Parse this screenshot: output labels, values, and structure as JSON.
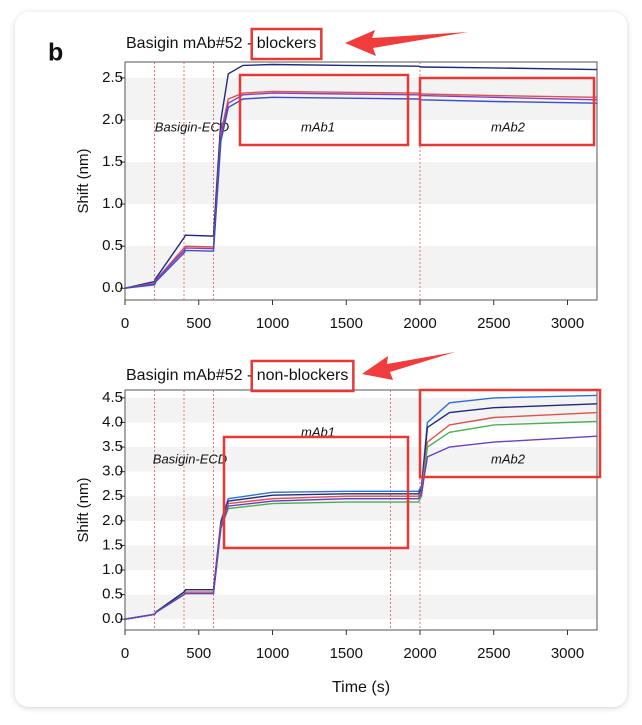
{
  "panel_label": "b",
  "chart_data": [
    {
      "type": "line",
      "title": "Basigin mAb#52 - blockers",
      "y_label": "Shift (nm)",
      "annotations": [
        "Basigin-ECD",
        "mAb1",
        "mAb2"
      ],
      "x": [
        0,
        200,
        210,
        400,
        410,
        600,
        650,
        700,
        800,
        1000,
        1500,
        1990,
        2010,
        2500,
        3200
      ],
      "series": [
        {
          "color": "#1f2a7a",
          "values": [
            0,
            0.08,
            0.12,
            0.6,
            0.63,
            0.62,
            2.0,
            2.55,
            2.65,
            2.66,
            2.65,
            2.64,
            2.63,
            2.62,
            2.6
          ]
        },
        {
          "color": "#d9534f",
          "values": [
            0,
            0.06,
            0.1,
            0.48,
            0.5,
            0.49,
            1.85,
            2.25,
            2.32,
            2.34,
            2.33,
            2.32,
            2.31,
            2.29,
            2.27
          ]
        },
        {
          "color": "#8a3fbf",
          "values": [
            0,
            0.05,
            0.1,
            0.45,
            0.48,
            0.47,
            1.8,
            2.2,
            2.3,
            2.32,
            2.31,
            2.3,
            2.29,
            2.27,
            2.24
          ]
        },
        {
          "color": "#3a4fc4",
          "values": [
            0,
            0.04,
            0.08,
            0.42,
            0.45,
            0.44,
            1.75,
            2.15,
            2.25,
            2.27,
            2.26,
            2.25,
            2.24,
            2.22,
            2.2
          ]
        }
      ],
      "vlines": [
        200,
        400,
        600,
        2000
      ],
      "xlim": [
        0,
        3200
      ],
      "xticks": [
        0,
        500,
        1000,
        1500,
        2000,
        2500,
        3000
      ],
      "ylim": [
        -0.14,
        2.69
      ],
      "yticks": [
        {
          "value": 0,
          "label": "0.0"
        },
        {
          "value": 0.5,
          "label": "0.5"
        },
        {
          "value": 1,
          "label": "1.0"
        },
        {
          "value": 1.5,
          "label": "1.5"
        },
        {
          "value": 2,
          "label": "2.0"
        },
        {
          "value": 2.5,
          "label": "2.5"
        }
      ]
    },
    {
      "type": "line",
      "title": "Basigin mAb#52 - non-blockers",
      "y_label": "Shift (nm)",
      "x_label": "Time (s)",
      "annotations": [
        "Basigin-ECD",
        "mAb1",
        "mAb2"
      ],
      "x": [
        0,
        200,
        210,
        400,
        410,
        600,
        650,
        700,
        1000,
        1500,
        1990,
        2010,
        2050,
        2200,
        2500,
        3200
      ],
      "series": [
        {
          "color": "#2c6fd6",
          "values": [
            0,
            0.1,
            0.15,
            0.55,
            0.6,
            0.6,
            2.0,
            2.45,
            2.58,
            2.6,
            2.6,
            2.7,
            4.0,
            4.4,
            4.5,
            4.55
          ]
        },
        {
          "color": "#1f2a7a",
          "values": [
            0,
            0.1,
            0.15,
            0.55,
            0.6,
            0.6,
            1.95,
            2.4,
            2.52,
            2.55,
            2.55,
            2.65,
            3.9,
            4.2,
            4.3,
            4.38
          ]
        },
        {
          "color": "#d9534f",
          "values": [
            0,
            0.1,
            0.14,
            0.5,
            0.55,
            0.55,
            1.9,
            2.35,
            2.45,
            2.5,
            2.5,
            2.6,
            3.6,
            3.95,
            4.1,
            4.2
          ]
        },
        {
          "color": "#4caf50",
          "values": [
            0,
            0.1,
            0.14,
            0.5,
            0.52,
            0.52,
            1.85,
            2.25,
            2.35,
            2.38,
            2.38,
            2.5,
            3.5,
            3.8,
            3.95,
            4.02
          ]
        },
        {
          "color": "#6a3fbf",
          "values": [
            0,
            0.1,
            0.14,
            0.5,
            0.52,
            0.52,
            1.85,
            2.3,
            2.4,
            2.45,
            2.45,
            2.55,
            3.3,
            3.5,
            3.6,
            3.72
          ]
        }
      ],
      "vlines": [
        200,
        400,
        600,
        1800,
        2000
      ],
      "xlim": [
        0,
        3200
      ],
      "xticks": [
        0,
        500,
        1000,
        1500,
        2000,
        2500,
        3000
      ],
      "ylim": [
        -0.22,
        4.66
      ],
      "yticks": [
        {
          "value": 0,
          "label": "0.0"
        },
        {
          "value": 0.5,
          "label": "0.5"
        },
        {
          "value": 1,
          "label": "1.0"
        },
        {
          "value": 1.5,
          "label": "1.5"
        },
        {
          "value": 2,
          "label": "2.0"
        },
        {
          "value": 2.5,
          "label": "2.5"
        },
        {
          "value": 3,
          "label": "3.0"
        },
        {
          "value": 3.5,
          "label": "3.5"
        },
        {
          "value": 4,
          "label": "4.0"
        },
        {
          "value": 4.5,
          "label": "4.5"
        }
      ]
    }
  ]
}
